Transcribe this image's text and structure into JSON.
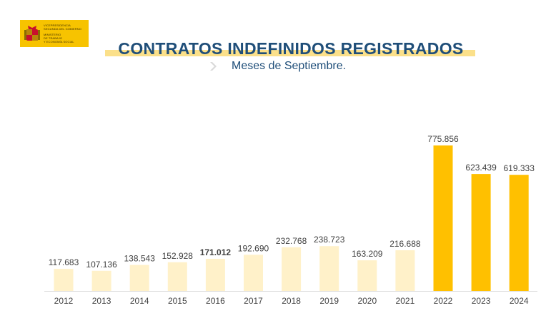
{
  "logo": {
    "lines": [
      "VICEPRESIDENCIA",
      "SEGUNDA DEL GOBIERNO",
      "",
      "MINISTERIO",
      "DE TRABAJO",
      "Y ECONOMÍA SOCIAL"
    ]
  },
  "colors": {
    "title": "#1f4e79",
    "bar_light": "#fff1c9",
    "bar_strong": "#ffc000",
    "baseline": "#d9d9d9"
  },
  "chart_data": {
    "type": "bar",
    "title": "CONTRATOS INDEFINIDOS REGISTRADOS",
    "subtitle": "Meses de Septiembre.",
    "categories": [
      "2012",
      "2013",
      "2014",
      "2015",
      "2016",
      "2017",
      "2018",
      "2019",
      "2020",
      "2021",
      "2022",
      "2023",
      "2024"
    ],
    "values": [
      117683,
      107136,
      138543,
      152928,
      171012,
      192690,
      232768,
      238723,
      163209,
      216688,
      775856,
      623439,
      619333
    ],
    "value_labels": [
      "117.683",
      "107.136",
      "138.543",
      "152.928",
      "171.012",
      "192.690",
      "232.768",
      "238.723",
      "163.209",
      "216.688",
      "775.856",
      "623.439",
      "619.333"
    ],
    "highlight": [
      false,
      false,
      false,
      false,
      false,
      false,
      false,
      false,
      false,
      false,
      true,
      true,
      true
    ],
    "bold_labels": [
      false,
      false,
      false,
      false,
      true,
      false,
      false,
      false,
      false,
      false,
      false,
      false,
      false
    ],
    "ylim": [
      0,
      775856
    ],
    "grid": false,
    "legend": "none",
    "xlabel": "",
    "ylabel": ""
  }
}
